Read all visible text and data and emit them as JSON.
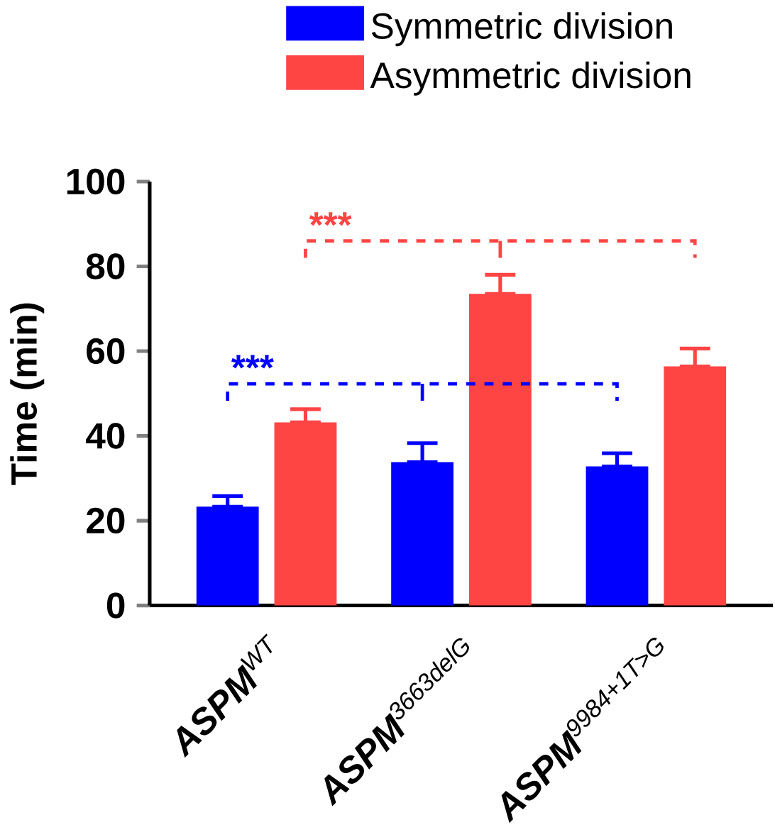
{
  "chart_data": {
    "type": "bar",
    "categories": [
      "**ASPM**$^{WT}$",
      "**ASPM**$^{3663delG}$",
      "**ASPM**$^{9984+1T>G}$"
    ],
    "series": [
      {
        "name": "Symmetric division",
        "color": "#0000ff",
        "values": [
          23.3,
          33.8,
          32.8
        ],
        "errors": [
          [
            23.3,
            25.8
          ],
          [
            33.8,
            38.3
          ],
          [
            32.8,
            35.9
          ]
        ]
      },
      {
        "name": "Asymmetric division",
        "color": "#ff4444",
        "values": [
          43.2,
          73.5,
          56.4
        ],
        "errors": [
          [
            43.2,
            46.3
          ],
          [
            73.5,
            78.0
          ],
          [
            56.4,
            60.6
          ]
        ]
      }
    ],
    "ylabel": "Time (min)",
    "ylim": [
      0,
      100
    ],
    "yticks": [
      0,
      20,
      40,
      60,
      80,
      100
    ],
    "legend": "top",
    "annotations": [
      "***",
      "***"
    ]
  }
}
